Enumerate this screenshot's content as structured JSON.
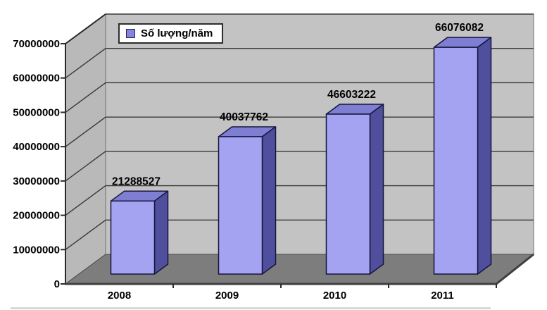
{
  "chart_data": {
    "type": "bar",
    "style": "3d-column",
    "title": "",
    "xlabel": "",
    "ylabel": "",
    "categories": [
      "2008",
      "2009",
      "2010",
      "2011"
    ],
    "series": [
      {
        "name": "Số lượng/năm",
        "values": [
          21288527,
          40037762,
          46603222,
          66076082
        ]
      }
    ],
    "value_labels": [
      "21288527",
      "40037762",
      "46603222",
      "66076082"
    ],
    "ylim": [
      0,
      70000000
    ],
    "ytick_interval": 10000000,
    "yticks": [
      "0",
      "10000000",
      "20000000",
      "30000000",
      "40000000",
      "50000000",
      "60000000",
      "70000000"
    ],
    "grid": true,
    "legend": {
      "label": "Số lượng/năm",
      "position": "top-left"
    },
    "colors": {
      "bar_front": "#a3a3f2",
      "bar_top": "#7e7ed2",
      "bar_side": "#4f4f9e",
      "bar_outline": "#15153c",
      "back_wall": "#c3c3c3",
      "left_wall": "#b9b9b9",
      "floor": "#7d7d7d",
      "floor_edge": "#3f3f3f",
      "gridline": "#383838",
      "axis": "#2a2a2a",
      "wall_border": "#6f6f6f",
      "legend_marker": "#8585dd",
      "background": "#ffffff",
      "text": "#000000"
    }
  }
}
